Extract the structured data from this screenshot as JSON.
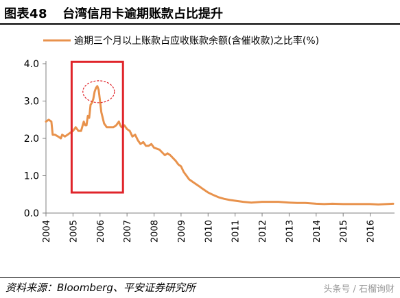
{
  "header": {
    "figure_label": "图表48",
    "figure_title": "台湾信用卡逾期账款占比提升"
  },
  "footer": {
    "source": "资料来源：Bloomberg、平安证券研究所",
    "watermark": "头条号 / 石榴询财"
  },
  "colors": {
    "series": "#E8924C",
    "highlight_box": "#E0242A",
    "axis": "#7f7f7f"
  },
  "chart_data": {
    "type": "line",
    "title": "",
    "xlabel": "",
    "ylabel": "",
    "ylim": [
      0,
      4
    ],
    "yticks": [
      "0.0",
      "1.0",
      "2.0",
      "3.0",
      "4.0"
    ],
    "xticks": [
      "2004",
      "2005",
      "2006",
      "2007",
      "2008",
      "2009",
      "2010",
      "2011",
      "2012",
      "2013",
      "2014",
      "2015",
      "2016"
    ],
    "xlim": [
      2004,
      2016.9
    ],
    "legend_position": "top",
    "grid": false,
    "series": [
      {
        "name": "逾期三个月以上账款占应收账款余额(含催收款)之比率(%)",
        "x": [
          2004.0,
          2004.1,
          2004.2,
          2004.25,
          2004.33,
          2004.45,
          2004.55,
          2004.6,
          2004.7,
          2004.8,
          2004.9,
          2005.0,
          2005.1,
          2005.2,
          2005.3,
          2005.4,
          2005.45,
          2005.5,
          2005.55,
          2005.6,
          2005.65,
          2005.7,
          2005.75,
          2005.8,
          2005.85,
          2005.9,
          2005.95,
          2006.0,
          2006.05,
          2006.1,
          2006.15,
          2006.2,
          2006.25,
          2006.3,
          2006.4,
          2006.5,
          2006.6,
          2006.7,
          2006.75,
          2006.8,
          2006.85,
          2006.9,
          2007.0,
          2007.1,
          2007.2,
          2007.3,
          2007.4,
          2007.5,
          2007.6,
          2007.7,
          2007.8,
          2007.9,
          2008.0,
          2008.2,
          2008.4,
          2008.5,
          2008.6,
          2008.8,
          2008.9,
          2009.0,
          2009.1,
          2009.2,
          2009.3,
          2009.5,
          2009.7,
          2009.8,
          2010.0,
          2010.2,
          2010.4,
          2010.6,
          2010.8,
          2011.0,
          2011.3,
          2011.6,
          2012.0,
          2012.3,
          2012.6,
          2013.0,
          2013.3,
          2013.6,
          2014.0,
          2014.3,
          2014.6,
          2015.0,
          2015.3,
          2015.6,
          2016.0,
          2016.3,
          2016.6,
          2016.85
        ],
        "values": [
          2.45,
          2.5,
          2.45,
          2.1,
          2.1,
          2.05,
          2.0,
          2.1,
          2.05,
          2.1,
          2.15,
          2.2,
          2.3,
          2.2,
          2.2,
          2.45,
          2.35,
          2.35,
          2.6,
          2.55,
          2.9,
          2.95,
          3.05,
          3.25,
          3.35,
          3.4,
          3.3,
          3.0,
          2.7,
          2.55,
          2.4,
          2.35,
          2.3,
          2.3,
          2.3,
          2.3,
          2.35,
          2.45,
          2.35,
          2.3,
          2.3,
          2.35,
          2.25,
          2.2,
          2.05,
          2.1,
          1.95,
          1.85,
          1.9,
          1.8,
          1.8,
          1.85,
          1.75,
          1.7,
          1.55,
          1.6,
          1.55,
          1.4,
          1.3,
          1.25,
          1.1,
          1.0,
          0.9,
          0.8,
          0.7,
          0.65,
          0.55,
          0.48,
          0.42,
          0.38,
          0.35,
          0.33,
          0.3,
          0.28,
          0.3,
          0.3,
          0.3,
          0.28,
          0.27,
          0.27,
          0.25,
          0.24,
          0.25,
          0.24,
          0.24,
          0.24,
          0.24,
          0.23,
          0.24,
          0.25
        ]
      }
    ]
  }
}
